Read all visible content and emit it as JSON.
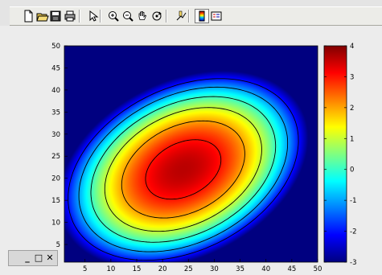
{
  "toolbar": {
    "buttons": [
      {
        "id": "new",
        "icon": "new-document-icon"
      },
      {
        "id": "open",
        "icon": "folder-open-icon"
      },
      {
        "id": "save",
        "icon": "save-disk-icon"
      },
      {
        "id": "print",
        "icon": "printer-icon"
      },
      {
        "id": "select",
        "icon": "arrow-pointer-icon"
      },
      {
        "id": "zoom-in",
        "icon": "zoom-in-icon"
      },
      {
        "id": "zoom-out",
        "icon": "zoom-out-icon"
      },
      {
        "id": "pan",
        "icon": "hand-pan-icon"
      },
      {
        "id": "rotate",
        "icon": "rotate-3d-icon"
      },
      {
        "id": "data-cursor",
        "icon": "data-cursor-icon"
      },
      {
        "id": "colorbar",
        "icon": "colorbar-icon",
        "pressed": true
      },
      {
        "id": "legend",
        "icon": "legend-icon"
      }
    ]
  },
  "chart_data": {
    "type": "heatmap",
    "title": "",
    "xlabel": "",
    "ylabel": "",
    "xlim": [
      1,
      50
    ],
    "ylim": [
      1,
      50
    ],
    "x_ticks": [
      5,
      10,
      15,
      20,
      25,
      30,
      35,
      40,
      45,
      50
    ],
    "y_ticks": [
      5,
      10,
      15,
      20,
      25,
      30,
      35,
      40,
      45,
      50
    ],
    "peak": {
      "x": 24,
      "y": 22,
      "value": 3.6
    },
    "contour_levels": [
      -2,
      -1,
      0,
      1,
      2,
      3
    ],
    "colormap": "jet",
    "grid": false,
    "colorbar": {
      "position": "right",
      "range": [
        -3,
        4
      ],
      "ticks": [
        4,
        3,
        2,
        1,
        0,
        -1,
        -2,
        -3
      ]
    }
  },
  "window": {
    "buttons": [
      "_",
      "□",
      "✕"
    ]
  }
}
